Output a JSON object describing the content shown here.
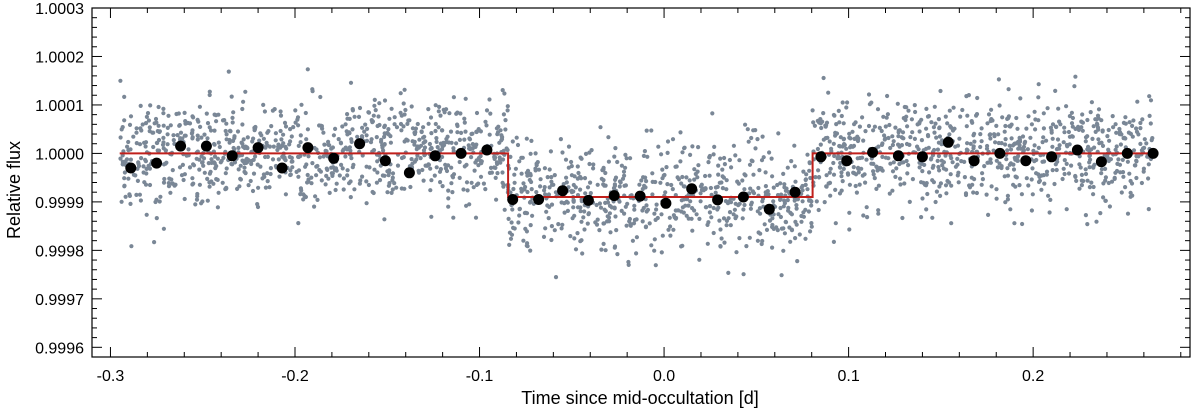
{
  "chart_data": {
    "type": "scatter",
    "xlabel": "Time since mid-occultation [d]",
    "ylabel": "Relative flux",
    "xlim": [
      -0.31,
      0.285
    ],
    "ylim": [
      0.99958,
      1.0003
    ],
    "x_ticks": [
      -0.3,
      -0.2,
      -0.1,
      0.0,
      0.1,
      0.2
    ],
    "x_tick_labels": [
      "-0.3",
      "-0.2",
      "-0.1",
      "0.0",
      "0.1",
      "0.2"
    ],
    "y_ticks": [
      0.9996,
      0.9997,
      0.9998,
      0.9999,
      1.0,
      1.0001,
      1.0002,
      1.0003
    ],
    "y_tick_labels": [
      "0.9996",
      "0.9997",
      "0.9998",
      "0.9999",
      "1.0000",
      "1.0001",
      "1.0002",
      "1.0003"
    ],
    "grid": false,
    "legend": "none",
    "colors": {
      "raw_points": "#7a8796",
      "binned_points": "#000000",
      "model_line": "#c0201c",
      "frame": "#000000"
    },
    "series": [
      {
        "kind": "raw",
        "x_range": [
          -0.295,
          0.265
        ],
        "count": 2400,
        "center_out": 1.0,
        "center_in": 0.99991,
        "scatter_sd": 5.5e-05,
        "y_min": 0.99967,
        "y_max": 1.00024
      },
      {
        "kind": "binned",
        "x": [
          -0.289,
          -0.275,
          -0.262,
          -0.248,
          -0.234,
          -0.22,
          -0.207,
          -0.193,
          -0.179,
          -0.165,
          -0.151,
          -0.138,
          -0.124,
          -0.11,
          -0.096,
          -0.082,
          -0.068,
          -0.055,
          -0.041,
          -0.027,
          -0.013,
          0.001,
          0.015,
          0.029,
          0.043,
          0.057,
          0.071,
          0.085,
          0.099,
          0.113,
          0.127,
          0.14,
          0.154,
          0.168,
          0.182,
          0.196,
          0.21,
          0.224,
          0.237,
          0.251,
          0.265
        ],
        "y": [
          0.99997,
          0.99998,
          1.000015,
          1.000015,
          0.999995,
          1.000012,
          0.99997,
          1.000012,
          0.99999,
          1.00002,
          0.999985,
          0.99996,
          0.999995,
          1.0,
          1.000007,
          0.999905,
          0.999905,
          0.999923,
          0.999903,
          0.999913,
          0.999912,
          0.999897,
          0.999927,
          0.999904,
          0.99991,
          0.999885,
          0.99992,
          0.999993,
          0.999985,
          1.000002,
          0.999995,
          0.999993,
          1.000023,
          0.999985,
          1.0,
          0.999985,
          0.999993,
          1.000007,
          0.999983,
          1.0,
          1.0
        ]
      },
      {
        "kind": "model",
        "x": [
          -0.295,
          -0.0845,
          -0.0845,
          0.0805,
          0.0805,
          0.265
        ],
        "y": [
          1.0,
          1.0,
          0.99991,
          0.99991,
          1.0,
          1.0
        ]
      }
    ]
  }
}
